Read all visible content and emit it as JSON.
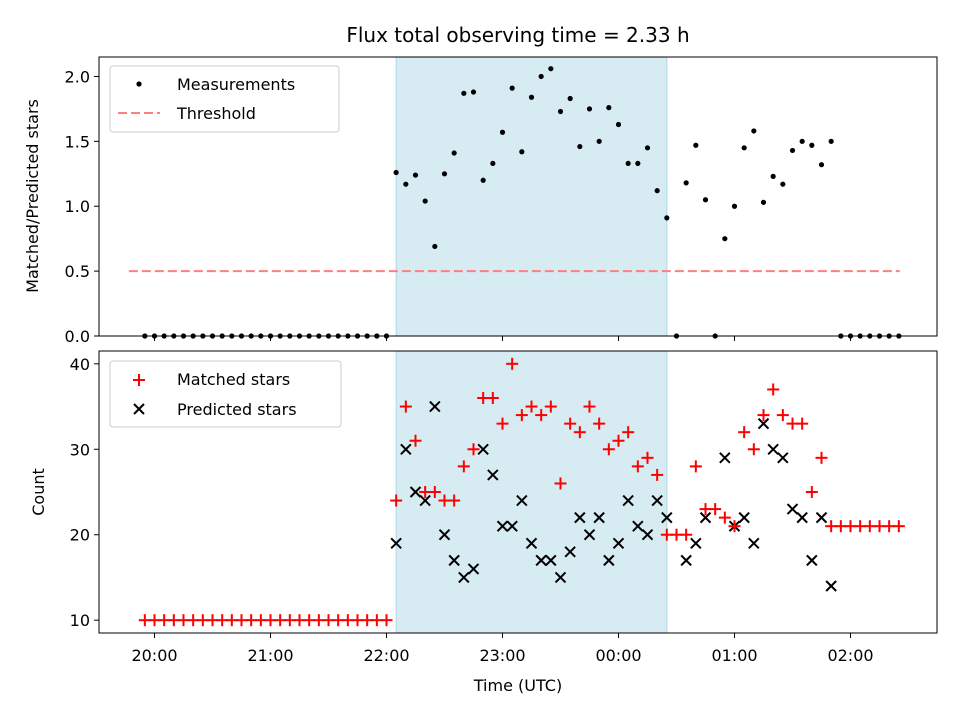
{
  "chart_data": [
    {
      "type": "scatter",
      "title": "Flux total observing time = 2.33 h",
      "xlabel": "",
      "ylabel": "Matched/Predicted stars",
      "ylim": [
        0,
        2.15
      ],
      "y_ticks": [
        "0.0",
        "0.5",
        "1.0",
        "1.5",
        "2.0"
      ],
      "y_tick_values": [
        0,
        0.5,
        1.0,
        1.5,
        2.0
      ],
      "legend": {
        "placement": "top-left",
        "entries": [
          "Measurements",
          "Threshold"
        ]
      },
      "shaded_span": [
        "22:05",
        "00:25"
      ],
      "threshold": {
        "name": "Threshold",
        "y": 0.5,
        "x_range": [
          "19:55",
          "02:25"
        ],
        "color": "#ff7f7f",
        "style": "dashed"
      },
      "series": [
        {
          "name": "Measurements",
          "color": "#000000",
          "marker": "dot",
          "points": [
            [
              "19:55",
              0
            ],
            [
              "20:00",
              0
            ],
            [
              "20:05",
              0
            ],
            [
              "20:10",
              0
            ],
            [
              "20:15",
              0
            ],
            [
              "20:20",
              0
            ],
            [
              "20:25",
              0
            ],
            [
              "20:30",
              0
            ],
            [
              "20:35",
              0
            ],
            [
              "20:40",
              0
            ],
            [
              "20:45",
              0
            ],
            [
              "20:50",
              0
            ],
            [
              "20:55",
              0
            ],
            [
              "21:00",
              0
            ],
            [
              "21:05",
              0
            ],
            [
              "21:10",
              0
            ],
            [
              "21:15",
              0
            ],
            [
              "21:20",
              0
            ],
            [
              "21:25",
              0
            ],
            [
              "21:30",
              0
            ],
            [
              "21:35",
              0
            ],
            [
              "21:40",
              0
            ],
            [
              "21:45",
              0
            ],
            [
              "21:50",
              0
            ],
            [
              "21:55",
              0
            ],
            [
              "22:00",
              0
            ],
            [
              "22:05",
              1.26
            ],
            [
              "22:10",
              1.17
            ],
            [
              "22:15",
              1.24
            ],
            [
              "22:20",
              1.04
            ],
            [
              "22:25",
              0.69
            ],
            [
              "22:30",
              1.25
            ],
            [
              "22:35",
              1.41
            ],
            [
              "22:40",
              1.87
            ],
            [
              "22:45",
              1.88
            ],
            [
              "22:50",
              1.2
            ],
            [
              "22:55",
              1.33
            ],
            [
              "23:00",
              1.57
            ],
            [
              "23:05",
              1.91
            ],
            [
              "23:10",
              1.42
            ],
            [
              "23:15",
              1.84
            ],
            [
              "23:20",
              2.0
            ],
            [
              "23:25",
              2.06
            ],
            [
              "23:30",
              1.73
            ],
            [
              "23:35",
              1.83
            ],
            [
              "23:40",
              1.46
            ],
            [
              "23:45",
              1.75
            ],
            [
              "23:50",
              1.5
            ],
            [
              "23:55",
              1.76
            ],
            [
              "00:00",
              1.63
            ],
            [
              "00:05",
              1.33
            ],
            [
              "00:10",
              1.33
            ],
            [
              "00:15",
              1.45
            ],
            [
              "00:20",
              1.12
            ],
            [
              "00:25",
              0.91
            ],
            [
              "00:30",
              0
            ],
            [
              "00:35",
              1.18
            ],
            [
              "00:40",
              1.47
            ],
            [
              "00:45",
              1.05
            ],
            [
              "00:50",
              0
            ],
            [
              "00:55",
              0.75
            ],
            [
              "01:00",
              1.0
            ],
            [
              "01:05",
              1.45
            ],
            [
              "01:10",
              1.58
            ],
            [
              "01:15",
              1.03
            ],
            [
              "01:20",
              1.23
            ],
            [
              "01:25",
              1.17
            ],
            [
              "01:30",
              1.43
            ],
            [
              "01:35",
              1.5
            ],
            [
              "01:40",
              1.47
            ],
            [
              "01:45",
              1.32
            ],
            [
              "01:50",
              1.5
            ],
            [
              "01:55",
              0
            ],
            [
              "02:00",
              0
            ],
            [
              "02:05",
              0
            ],
            [
              "02:10",
              0
            ],
            [
              "02:15",
              0
            ],
            [
              "02:20",
              0
            ],
            [
              "02:25",
              0
            ]
          ]
        }
      ]
    },
    {
      "type": "scatter",
      "title": "",
      "xlabel": "Time (UTC)",
      "ylabel": "Count",
      "ylim": [
        8.5,
        41.5
      ],
      "y_ticks": [
        "10",
        "20",
        "30",
        "40"
      ],
      "y_tick_values": [
        10,
        20,
        30,
        40
      ],
      "x_ticks": [
        "20:00",
        "21:00",
        "22:00",
        "23:00",
        "00:00",
        "01:00",
        "02:00"
      ],
      "x_tick_values": [
        "20:00",
        "21:00",
        "22:00",
        "23:00",
        "00:00",
        "01:00",
        "02:00"
      ],
      "legend": {
        "placement": "top-left",
        "entries": [
          "Matched stars",
          "Predicted stars"
        ]
      },
      "shaded_span": [
        "22:05",
        "00:25"
      ],
      "series": [
        {
          "name": "Matched stars",
          "color": "#ff0000",
          "marker": "plus",
          "points": [
            [
              "19:55",
              10
            ],
            [
              "20:00",
              10
            ],
            [
              "20:05",
              10
            ],
            [
              "20:10",
              10
            ],
            [
              "20:15",
              10
            ],
            [
              "20:20",
              10
            ],
            [
              "20:25",
              10
            ],
            [
              "20:30",
              10
            ],
            [
              "20:35",
              10
            ],
            [
              "20:40",
              10
            ],
            [
              "20:45",
              10
            ],
            [
              "20:50",
              10
            ],
            [
              "20:55",
              10
            ],
            [
              "21:00",
              10
            ],
            [
              "21:05",
              10
            ],
            [
              "21:10",
              10
            ],
            [
              "21:15",
              10
            ],
            [
              "21:20",
              10
            ],
            [
              "21:25",
              10
            ],
            [
              "21:30",
              10
            ],
            [
              "21:35",
              10
            ],
            [
              "21:40",
              10
            ],
            [
              "21:45",
              10
            ],
            [
              "21:50",
              10
            ],
            [
              "21:55",
              10
            ],
            [
              "22:00",
              10
            ],
            [
              "22:05",
              24
            ],
            [
              "22:10",
              35
            ],
            [
              "22:15",
              31
            ],
            [
              "22:20",
              25
            ],
            [
              "22:25",
              25
            ],
            [
              "22:30",
              24
            ],
            [
              "22:35",
              24
            ],
            [
              "22:40",
              28
            ],
            [
              "22:45",
              30
            ],
            [
              "22:50",
              36
            ],
            [
              "22:55",
              36
            ],
            [
              "23:00",
              33
            ],
            [
              "23:05",
              40
            ],
            [
              "23:10",
              34
            ],
            [
              "23:15",
              35
            ],
            [
              "23:20",
              34
            ],
            [
              "23:25",
              35
            ],
            [
              "23:30",
              26
            ],
            [
              "23:35",
              33
            ],
            [
              "23:40",
              32
            ],
            [
              "23:45",
              35
            ],
            [
              "23:50",
              33
            ],
            [
              "23:55",
              30
            ],
            [
              "00:00",
              31
            ],
            [
              "00:05",
              32
            ],
            [
              "00:10",
              28
            ],
            [
              "00:15",
              29
            ],
            [
              "00:20",
              27
            ],
            [
              "00:25",
              20
            ],
            [
              "00:30",
              20
            ],
            [
              "00:35",
              20
            ],
            [
              "00:40",
              28
            ],
            [
              "00:45",
              23
            ],
            [
              "00:50",
              23
            ],
            [
              "00:55",
              22
            ],
            [
              "01:00",
              21
            ],
            [
              "01:05",
              32
            ],
            [
              "01:10",
              30
            ],
            [
              "01:15",
              34
            ],
            [
              "01:20",
              37
            ],
            [
              "01:25",
              34
            ],
            [
              "01:30",
              33
            ],
            [
              "01:35",
              33
            ],
            [
              "01:40",
              25
            ],
            [
              "01:45",
              29
            ],
            [
              "01:50",
              21
            ],
            [
              "01:55",
              21
            ],
            [
              "02:00",
              21
            ],
            [
              "02:05",
              21
            ],
            [
              "02:10",
              21
            ],
            [
              "02:15",
              21
            ],
            [
              "02:20",
              21
            ],
            [
              "02:25",
              21
            ]
          ]
        },
        {
          "name": "Predicted stars",
          "color": "#000000",
          "marker": "x",
          "points": [
            [
              "22:05",
              19
            ],
            [
              "22:10",
              30
            ],
            [
              "22:15",
              25
            ],
            [
              "22:20",
              24
            ],
            [
              "22:25",
              35
            ],
            [
              "22:30",
              20
            ],
            [
              "22:35",
              17
            ],
            [
              "22:40",
              15
            ],
            [
              "22:45",
              16
            ],
            [
              "22:50",
              30
            ],
            [
              "22:55",
              27
            ],
            [
              "23:00",
              21
            ],
            [
              "23:05",
              21
            ],
            [
              "23:10",
              24
            ],
            [
              "23:15",
              19
            ],
            [
              "23:20",
              17
            ],
            [
              "23:25",
              17
            ],
            [
              "23:30",
              15
            ],
            [
              "23:35",
              18
            ],
            [
              "23:40",
              22
            ],
            [
              "23:45",
              20
            ],
            [
              "23:50",
              22
            ],
            [
              "23:55",
              17
            ],
            [
              "00:00",
              19
            ],
            [
              "00:05",
              24
            ],
            [
              "00:10",
              21
            ],
            [
              "00:15",
              20
            ],
            [
              "00:20",
              24
            ],
            [
              "00:25",
              22
            ],
            [
              "00:35",
              17
            ],
            [
              "00:40",
              19
            ],
            [
              "00:45",
              22
            ],
            [
              "00:55",
              29
            ],
            [
              "01:00",
              21
            ],
            [
              "01:05",
              22
            ],
            [
              "01:10",
              19
            ],
            [
              "01:15",
              33
            ],
            [
              "01:20",
              30
            ],
            [
              "01:25",
              29
            ],
            [
              "01:30",
              23
            ],
            [
              "01:35",
              22
            ],
            [
              "01:40",
              17
            ],
            [
              "01:45",
              22
            ],
            [
              "01:50",
              14
            ]
          ]
        }
      ]
    }
  ]
}
